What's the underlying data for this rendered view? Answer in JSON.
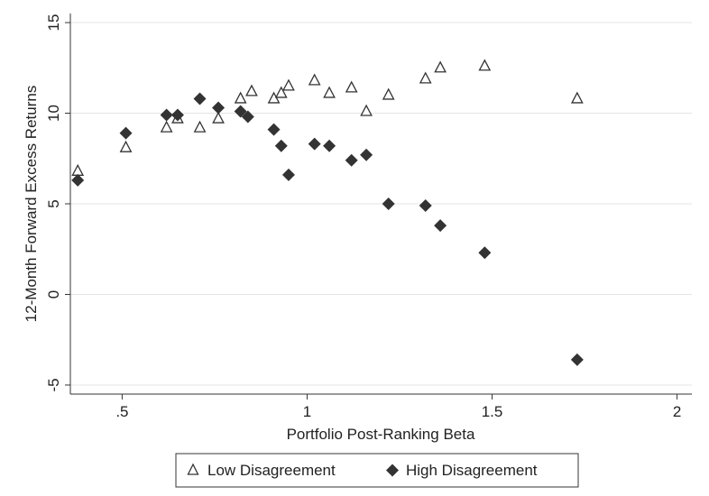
{
  "chart_data": {
    "type": "scatter",
    "xlabel": "Portfolio Post-Ranking Beta",
    "ylabel": "12-Month Forward Excess Returns",
    "xlim": [
      0.36,
      2.04
    ],
    "ylim": [
      -5.5,
      15.5
    ],
    "x_ticks": [
      {
        "value": 0.5,
        "label": ".5"
      },
      {
        "value": 1,
        "label": "1"
      },
      {
        "value": 1.5,
        "label": "1.5"
      },
      {
        "value": 2,
        "label": "2"
      }
    ],
    "y_ticks": [
      {
        "value": -5,
        "label": "-5"
      },
      {
        "value": 0,
        "label": "0"
      },
      {
        "value": 5,
        "label": "5"
      },
      {
        "value": 10,
        "label": "10"
      },
      {
        "value": 15,
        "label": "15"
      }
    ],
    "grid": "horizontal",
    "legend_position": "bottom",
    "series": [
      {
        "name": "Low Disagreement",
        "marker": "triangle-open",
        "color": "#333333",
        "points": [
          [
            0.38,
            6.8
          ],
          [
            0.51,
            8.1
          ],
          [
            0.62,
            9.2
          ],
          [
            0.65,
            9.7
          ],
          [
            0.71,
            9.2
          ],
          [
            0.76,
            9.7
          ],
          [
            0.82,
            10.8
          ],
          [
            0.85,
            11.2
          ],
          [
            0.91,
            10.8
          ],
          [
            0.93,
            11.1
          ],
          [
            0.95,
            11.5
          ],
          [
            1.02,
            11.8
          ],
          [
            1.06,
            11.1
          ],
          [
            1.12,
            11.4
          ],
          [
            1.16,
            10.1
          ],
          [
            1.22,
            11.0
          ],
          [
            1.32,
            11.9
          ],
          [
            1.36,
            12.5
          ],
          [
            1.48,
            12.6
          ],
          [
            1.73,
            10.8
          ]
        ]
      },
      {
        "name": "High Disagreement",
        "marker": "diamond-filled",
        "color": "#333333",
        "points": [
          [
            0.38,
            6.3
          ],
          [
            0.51,
            8.9
          ],
          [
            0.62,
            9.9
          ],
          [
            0.65,
            9.9
          ],
          [
            0.71,
            10.8
          ],
          [
            0.76,
            10.3
          ],
          [
            0.82,
            10.1
          ],
          [
            0.84,
            9.8
          ],
          [
            0.91,
            9.1
          ],
          [
            0.93,
            8.2
          ],
          [
            0.95,
            6.6
          ],
          [
            1.02,
            8.3
          ],
          [
            1.06,
            8.2
          ],
          [
            1.12,
            7.4
          ],
          [
            1.16,
            7.7
          ],
          [
            1.22,
            5.0
          ],
          [
            1.32,
            4.9
          ],
          [
            1.36,
            3.8
          ],
          [
            1.48,
            2.3
          ],
          [
            1.73,
            -3.6
          ]
        ]
      }
    ]
  }
}
